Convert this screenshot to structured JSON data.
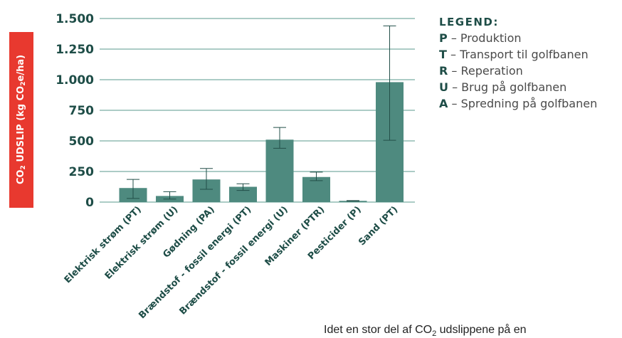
{
  "chart_data": {
    "type": "bar",
    "ylabel_parts": [
      "CO",
      "2",
      " UDSLIP (kg CO",
      "2",
      "e/ha)"
    ],
    "ylim": [
      0,
      1500
    ],
    "yticks": [
      {
        "value": 0,
        "label": "0"
      },
      {
        "value": 250,
        "label": "250"
      },
      {
        "value": 500,
        "label": "500"
      },
      {
        "value": 750,
        "label": "750"
      },
      {
        "value": 1000,
        "label": "1.000"
      },
      {
        "value": 1250,
        "label": "1.250"
      },
      {
        "value": 1500,
        "label": "1.500"
      }
    ],
    "grid": true,
    "categories": [
      "Elektrisk strøm (PT)",
      "Elektrisk strøm (U)",
      "Gødning (PA)",
      "Brændstof - fossil energi (PT)",
      "Brændstof - fossil energi (U)",
      "Maskiner (PTR)",
      "Pesticider (P)",
      "Sand (PT)"
    ],
    "values": [
      115,
      50,
      185,
      125,
      510,
      205,
      10,
      980
    ],
    "error_low": [
      30,
      25,
      105,
      95,
      440,
      175,
      8,
      505
    ],
    "error_high": [
      185,
      85,
      275,
      150,
      610,
      245,
      12,
      1440
    ],
    "bar_color": "#4e8a7f",
    "grid_color": "#5a9a8d",
    "tick_color": "#1e4d47"
  },
  "legend": {
    "title": "LEGEND:",
    "placement": "top-right",
    "items": [
      {
        "key": "P",
        "text": " – Produktion"
      },
      {
        "key": "T",
        "text": " – Transport til golfbanen"
      },
      {
        "key": "R",
        "text": " – Reperation"
      },
      {
        "key": "U",
        "text": " – Brug på golfbanen"
      },
      {
        "key": "A",
        "text": " – Spredning på golfbanen"
      }
    ]
  },
  "caption": {
    "before": "Idet en stor del af CO",
    "sub": "2",
    "after": " udslippene på en"
  }
}
